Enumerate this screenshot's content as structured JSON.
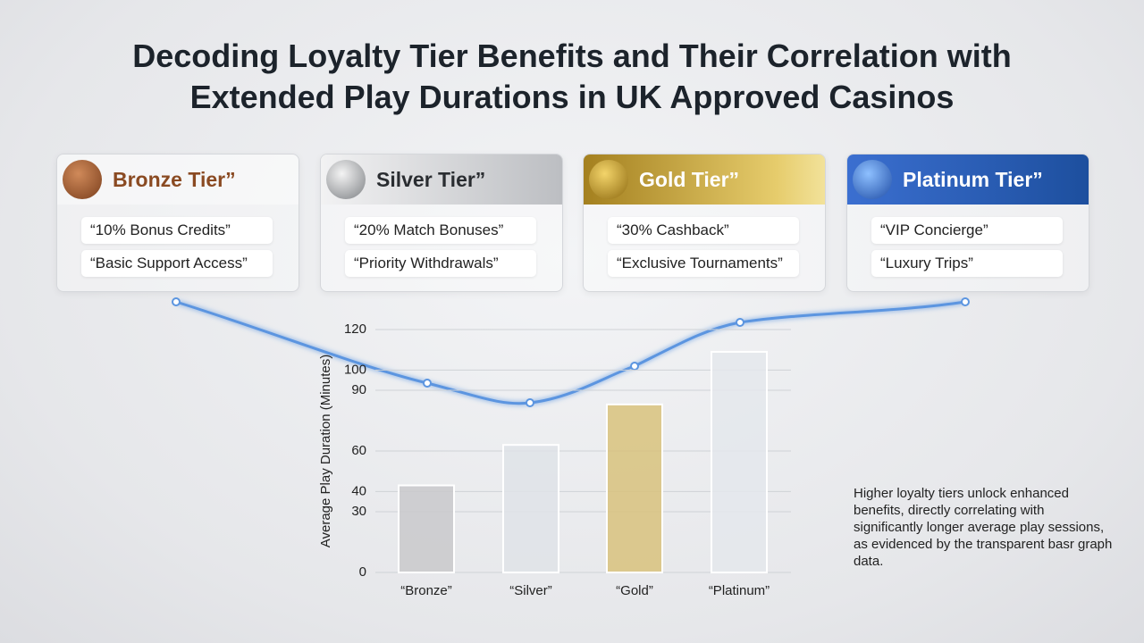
{
  "title": "Decoding Loyalty Tier Benefits and Their Correlation with Extended Play Durations in UK Approved Casinos",
  "tiers": [
    {
      "name": "Bronze Tier”",
      "benefits": [
        "“10% Bonus Credits”",
        "“Basic Support Access”"
      ]
    },
    {
      "name": "Silver Tier”",
      "benefits": [
        "“20% Match Bonuses”",
        "“Priority Withdrawals”"
      ]
    },
    {
      "name": "Gold Tier”",
      "benefits": [
        "“30% Cashback”",
        "“Exclusive Tournaments”"
      ]
    },
    {
      "name": "Platinum Tier”",
      "benefits": [
        "“VIP Concierge”",
        "“Luxury Trips”"
      ]
    }
  ],
  "note": "Higher loyalty tiers unlock enhanced benefits, directly correlating with significantly longer average play sessions, as evidenced by the transparent basr graph data.",
  "chart_data": {
    "type": "bar",
    "y_label": "Average Play Duration (Minutes)",
    "categories": [
      "“Bronze”",
      "“Silver”",
      "“Gold”",
      "“Platinum”"
    ],
    "values": [
      43,
      63,
      83,
      109
    ],
    "colors": [
      "#c9c9cb",
      "#dfe3e7",
      "#d8c27c",
      "#e4e8ec"
    ],
    "ylim": [
      0,
      120
    ],
    "yticks": [
      0,
      30,
      40,
      60,
      90,
      100,
      120
    ],
    "grid": true
  }
}
